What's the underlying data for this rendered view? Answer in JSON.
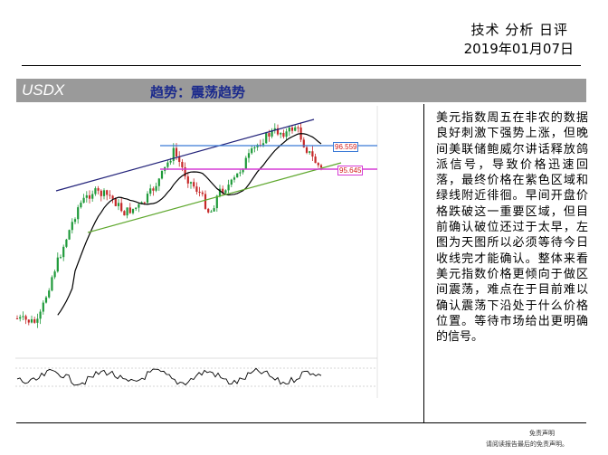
{
  "header": {
    "title": "技术 分析 日评",
    "date": "2019年01月07日"
  },
  "section": {
    "symbol": "USDX",
    "trend": "趋势：震荡趋势"
  },
  "chart": {
    "upper_level_label": "96.559",
    "lower_level_label": "95.645",
    "colors": {
      "up_candle": "#1f9a3a",
      "down_candle": "#c62828",
      "ma_line": "#000000",
      "channel_top": "#23237a",
      "channel_bottom": "#5fa82e",
      "resistance_line": "#3b7ad6",
      "support_line": "#d53bd5"
    }
  },
  "commentary": {
    "text": "美元指数周五在非农的数据良好刺激下强势上涨，但晚间美联储鲍威尔讲话释放鸽派信号，导致价格迅速回落，最终价格在紫色区域和绿线附近徘徊。早间开盘价格跌破这一重要区域，但目前确认破位还过于太早，左图为天图所以必须等待今日收线完才能确认。整体来看美元指数价格更倾向于做区间震荡，难点在于目前难以确认震荡下沿处于什么价格位置。等待市场给出更明确的信号。"
  },
  "footer": {
    "disclaimer_title": "免责声明",
    "disclaimer_text": "请阅读报告最后的免责声明。"
  }
}
